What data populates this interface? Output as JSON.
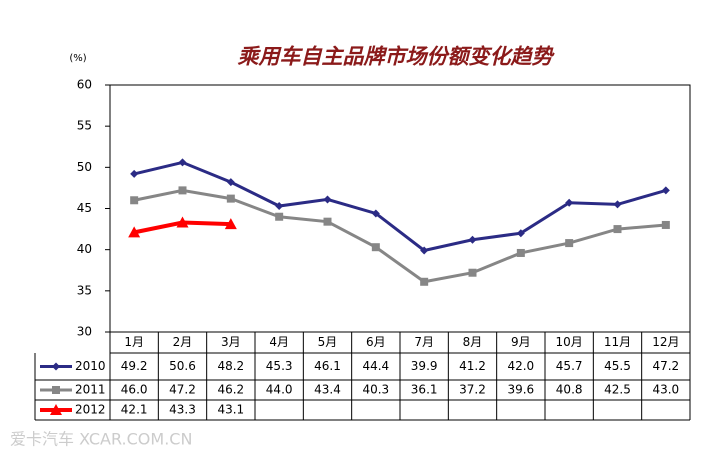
{
  "chart_data": {
    "type": "line",
    "title": "乘用车自主品牌市场份额变化趋势",
    "y_label": "(%)",
    "categories": [
      "1月",
      "2月",
      "3月",
      "4月",
      "5月",
      "6月",
      "7月",
      "8月",
      "9月",
      "10月",
      "11月",
      "12月"
    ],
    "series": [
      {
        "name": "2010",
        "color": "#2b2b85",
        "marker": "diamond",
        "values": [
          49.2,
          50.6,
          48.2,
          45.3,
          46.1,
          44.4,
          39.9,
          41.2,
          42.0,
          45.7,
          45.5,
          47.2
        ],
        "value_labels": [
          "49.2",
          "50.6",
          "48.2",
          "45.3",
          "46.1",
          "44.4",
          "39.9",
          "41.2",
          "42.0",
          "45.7",
          "45.5",
          "47.2"
        ]
      },
      {
        "name": "2011",
        "color": "#868686",
        "marker": "square",
        "values": [
          46.0,
          47.2,
          46.2,
          44.0,
          43.4,
          40.3,
          36.1,
          37.2,
          39.6,
          40.8,
          42.5,
          43.0
        ],
        "value_labels": [
          "46.0",
          "47.2",
          "46.2",
          "44.0",
          "43.4",
          "40.3",
          "36.1",
          "37.2",
          "39.6",
          "40.8",
          "42.5",
          "43.0"
        ]
      },
      {
        "name": "2012",
        "color": "#ff0000",
        "marker": "triangle",
        "values": [
          42.1,
          43.3,
          43.1,
          null,
          null,
          null,
          null,
          null,
          null,
          null,
          null,
          null
        ],
        "value_labels": [
          "42.1",
          "43.3",
          "43.1",
          null,
          null,
          null,
          null,
          null,
          null,
          null,
          null,
          null
        ]
      }
    ],
    "ylim": [
      30,
      60
    ],
    "yticks": [
      30,
      35,
      40,
      45,
      50,
      55,
      60
    ],
    "grid": false,
    "watermark": "爱卡汽车 XCAR.COM.CN"
  }
}
